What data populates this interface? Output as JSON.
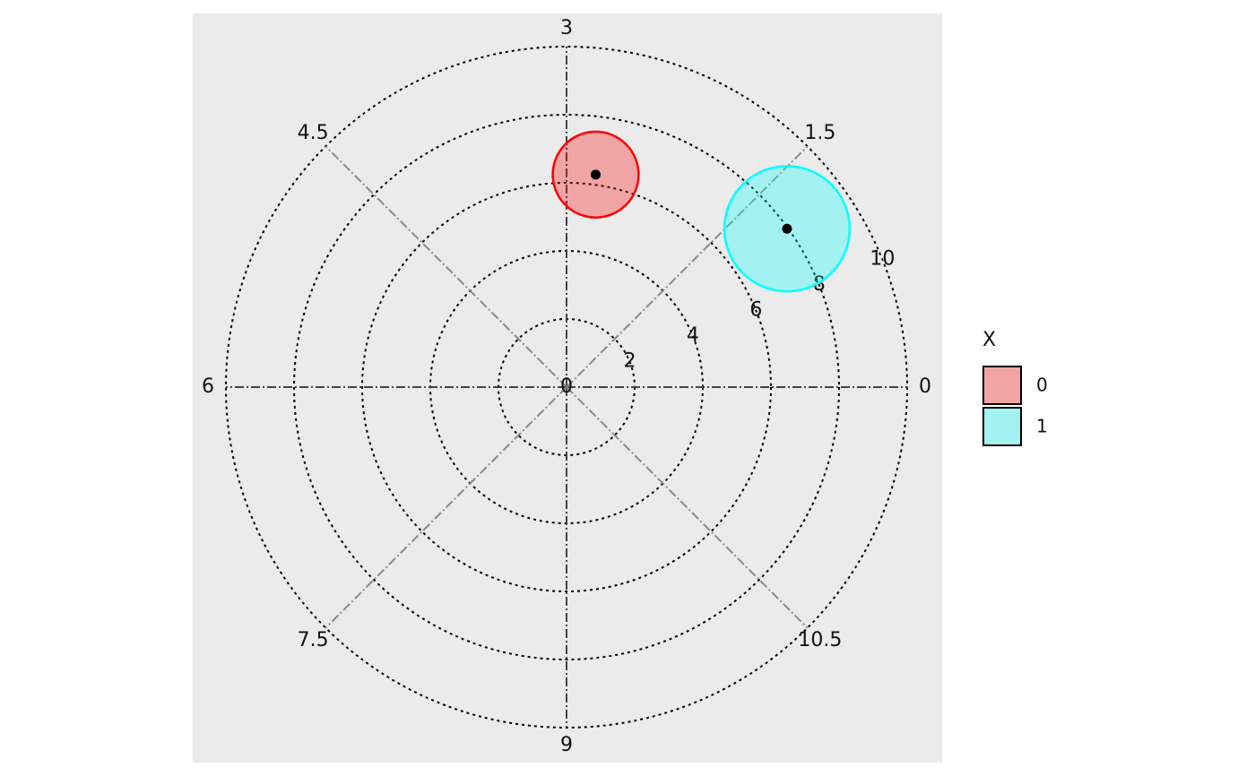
{
  "chart_data": {
    "type": "scatter",
    "polar": true,
    "xlim": [
      0,
      12
    ],
    "xticks": [
      0,
      1.5,
      3,
      4.5,
      6,
      7.5,
      9,
      10.5
    ],
    "ylim": [
      0,
      10
    ],
    "yticks": [
      0,
      2,
      4,
      6,
      8,
      10
    ],
    "legend_title": "X",
    "series": [
      {
        "name": "0",
        "color": "red",
        "x": [
          2.74
        ],
        "values": [
          6.3
        ],
        "sizes": [
          1.26
        ]
      },
      {
        "name": "1",
        "color": "cyan",
        "x": [
          1.19
        ],
        "values": [
          7.97
        ],
        "sizes": [
          1.84
        ]
      }
    ]
  }
}
